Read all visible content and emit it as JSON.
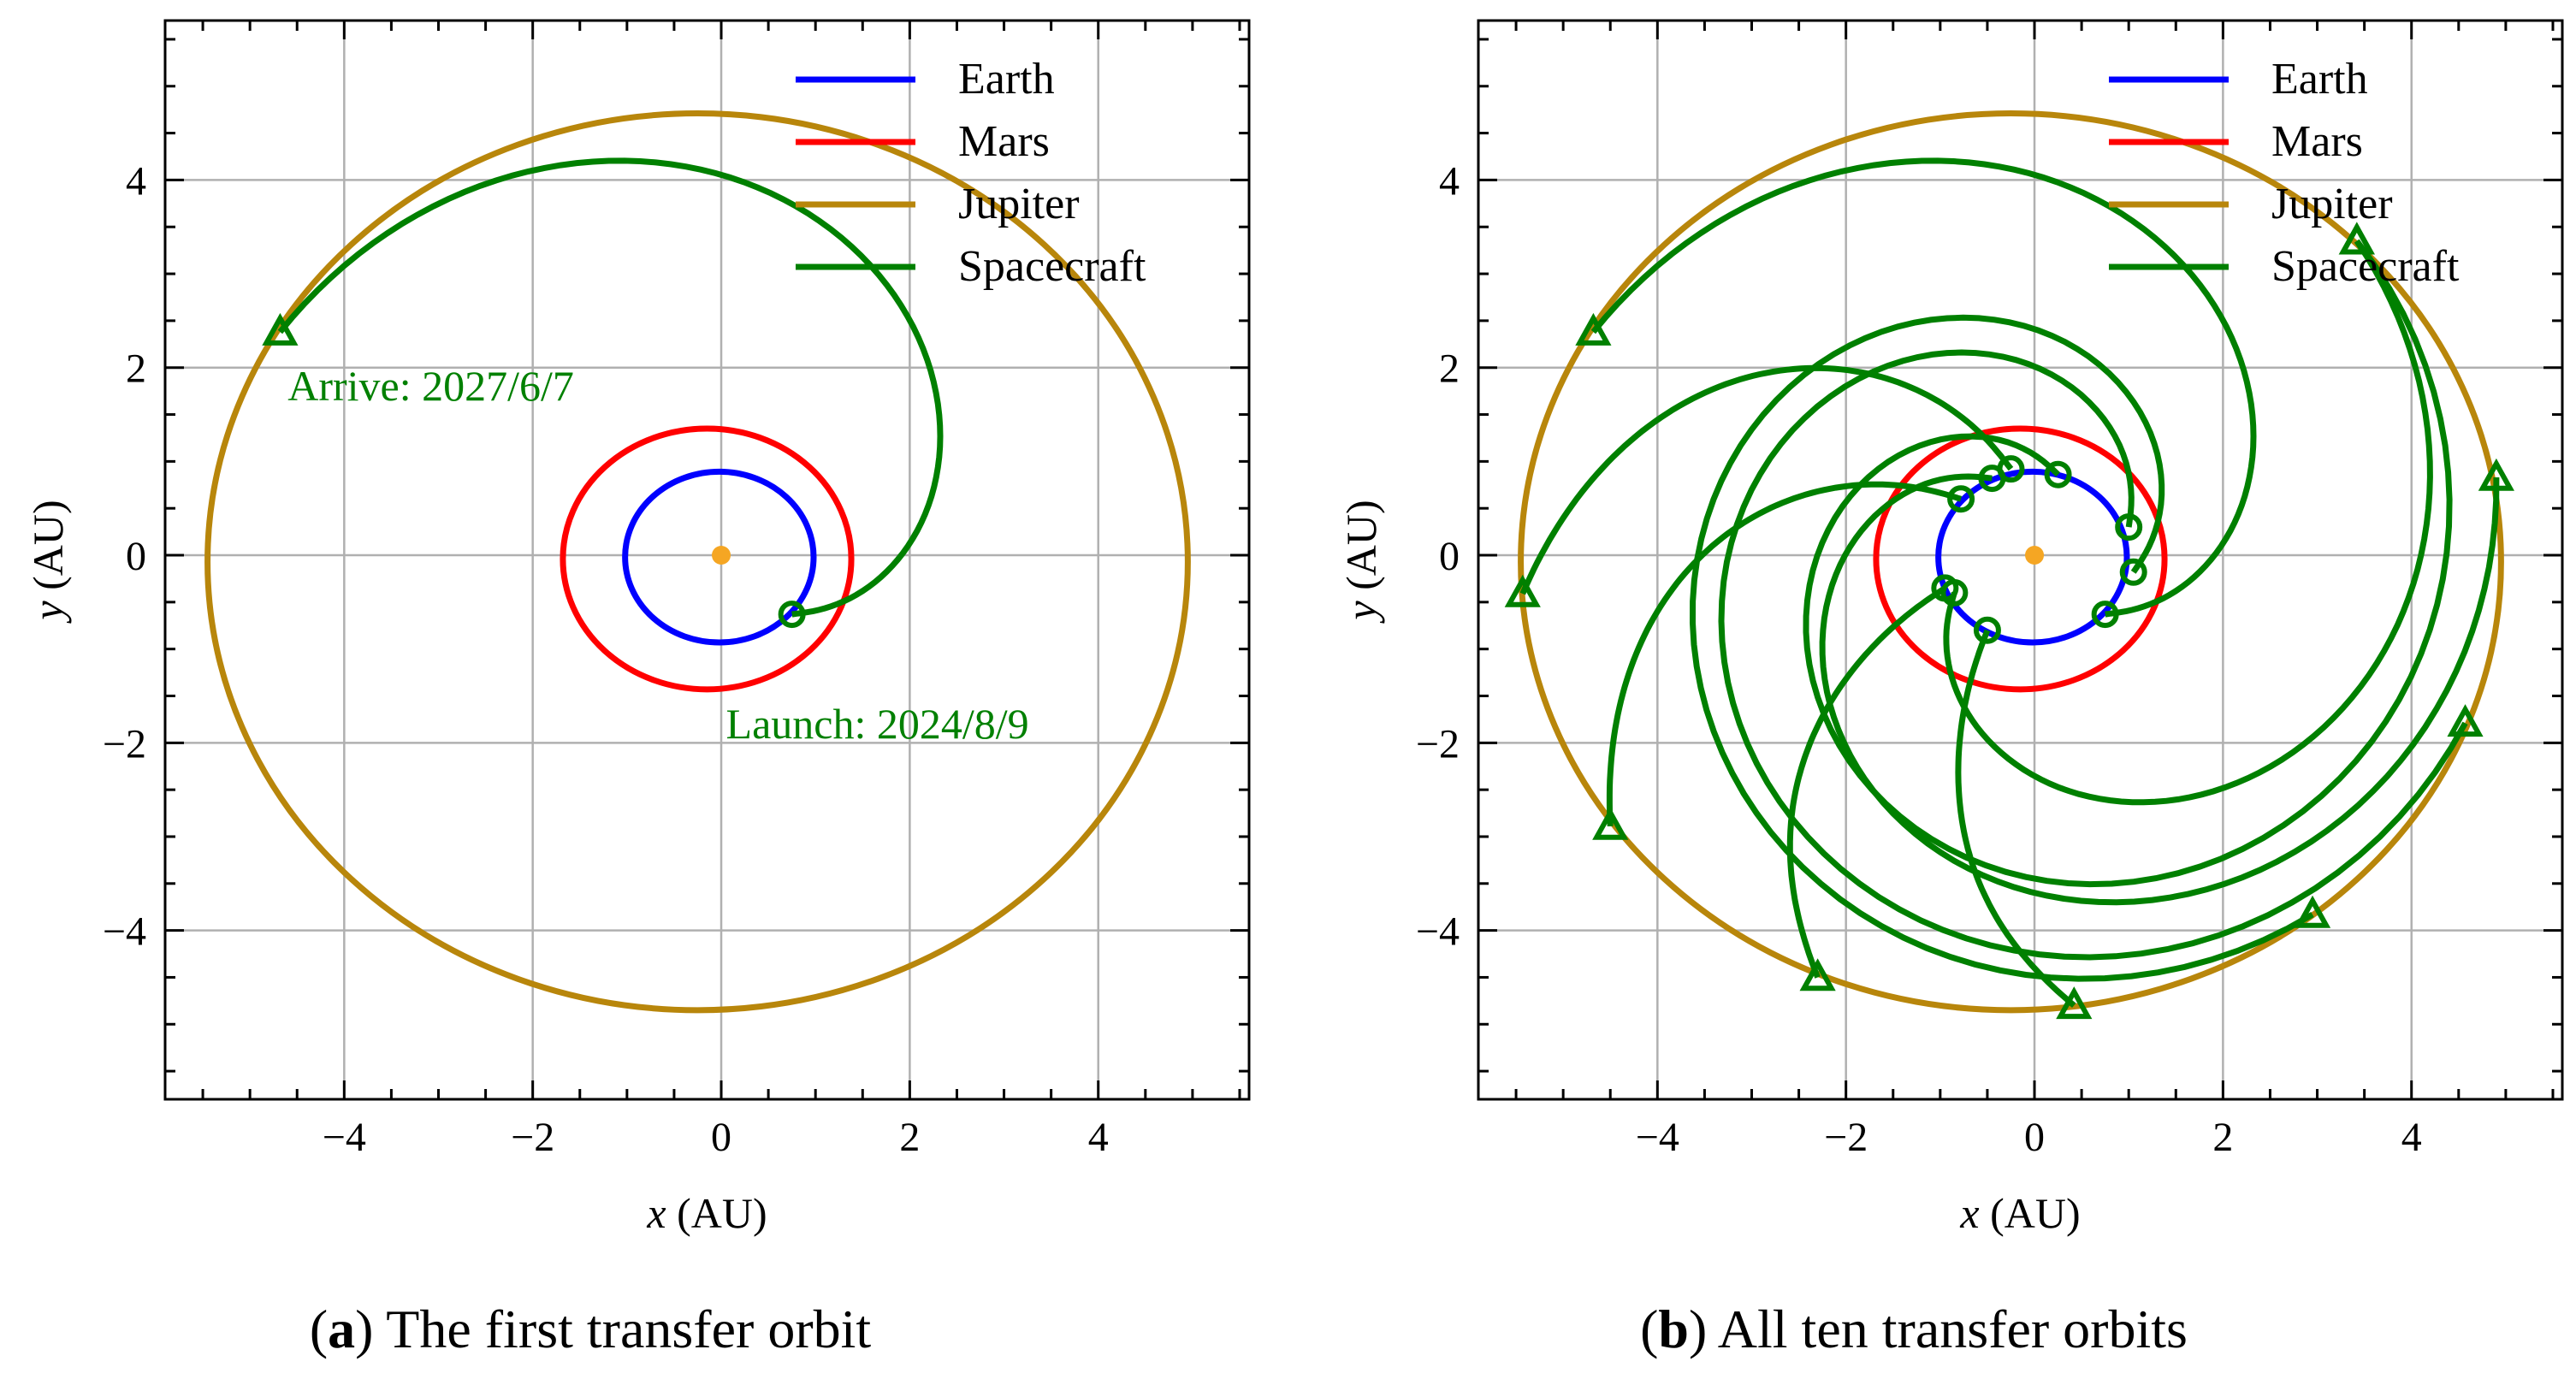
{
  "figure": {
    "captions": [
      {
        "letter": "a",
        "text": "The first transfer orbit"
      },
      {
        "letter": "b",
        "text": "All ten transfer orbits"
      }
    ]
  },
  "chart_data": [
    {
      "type": "line",
      "panel": "a",
      "title": "",
      "xlabel": "x (AU)",
      "ylabel": "y (AU)",
      "xlabel_var": "x",
      "ylabel_var": "y",
      "label_unit": " (AU)",
      "xlim": [
        -5.9,
        5.6
      ],
      "ylim": [
        -5.8,
        5.7
      ],
      "xticks": [
        -4,
        -2,
        0,
        2,
        4
      ],
      "yticks": [
        -4,
        -2,
        0,
        2,
        4
      ],
      "xtick_labels": [
        "−4",
        "−2",
        "0",
        "2",
        "4"
      ],
      "ytick_labels": [
        "−4",
        "−2",
        "0",
        "2",
        "4"
      ],
      "grid": true,
      "legend": {
        "position": "top-right",
        "entries": [
          {
            "label": "Earth",
            "color": "#0000ff"
          },
          {
            "label": "Mars",
            "color": "#ff0000"
          },
          {
            "label": "Jupiter",
            "color": "#b8860b"
          },
          {
            "label": "Spacecraft",
            "color": "#008000"
          }
        ]
      },
      "sun": {
        "x": 0,
        "y": 0,
        "color": "#f5a623"
      },
      "orbits": [
        {
          "name": "Earth",
          "center": [
            -0.02,
            -0.02
          ],
          "rx": 1.0,
          "ry": 0.91,
          "color": "#0000ff"
        },
        {
          "name": "Mars",
          "center": [
            -0.15,
            -0.04
          ],
          "rx": 1.53,
          "ry": 1.39,
          "color": "#ff0000"
        },
        {
          "name": "Jupiter",
          "center": [
            -0.25,
            -0.07
          ],
          "rx": 5.2,
          "ry": 4.78,
          "color": "#b8860b"
        }
      ],
      "transfers": [
        {
          "launch": [
            0.75,
            -0.63
          ],
          "arrive": [
            -4.68,
            2.38
          ]
        }
      ],
      "annotations": [
        {
          "text": "Arrive: 2027/6/7",
          "x": -4.6,
          "y": 1.65
        },
        {
          "text": "Launch: 2024/8/9",
          "x": 0.05,
          "y": -1.95
        }
      ]
    },
    {
      "type": "line",
      "panel": "b",
      "title": "",
      "xlabel": "x (AU)",
      "ylabel": "y (AU)",
      "xlabel_var": "x",
      "ylabel_var": "y",
      "label_unit": " (AU)",
      "xlim": [
        -5.9,
        5.6
      ],
      "ylim": [
        -5.8,
        5.7
      ],
      "xticks": [
        -4,
        -2,
        0,
        2,
        4
      ],
      "yticks": [
        -4,
        -2,
        0,
        2,
        4
      ],
      "xtick_labels": [
        "−4",
        "−2",
        "0",
        "2",
        "4"
      ],
      "ytick_labels": [
        "−4",
        "−2",
        "0",
        "2",
        "4"
      ],
      "grid": true,
      "legend": {
        "position": "top-right",
        "entries": [
          {
            "label": "Earth",
            "color": "#0000ff"
          },
          {
            "label": "Mars",
            "color": "#ff0000"
          },
          {
            "label": "Jupiter",
            "color": "#b8860b"
          },
          {
            "label": "Spacecraft",
            "color": "#008000"
          }
        ]
      },
      "sun": {
        "x": 0,
        "y": 0,
        "color": "#f5a623"
      },
      "orbits": [
        {
          "name": "Earth",
          "center": [
            -0.02,
            -0.02
          ],
          "rx": 1.0,
          "ry": 0.91,
          "color": "#0000ff"
        },
        {
          "name": "Mars",
          "center": [
            -0.15,
            -0.04
          ],
          "rx": 1.53,
          "ry": 1.39,
          "color": "#ff0000"
        },
        {
          "name": "Jupiter",
          "center": [
            -0.25,
            -0.07
          ],
          "rx": 5.2,
          "ry": 4.78,
          "color": "#b8860b"
        }
      ],
      "transfers": [
        {
          "launch": [
            0.75,
            -0.63
          ],
          "arrive": [
            -4.68,
            2.38
          ]
        },
        {
          "launch": [
            0.25,
            0.86
          ],
          "arrive": [
            3.42,
            3.35
          ]
        },
        {
          "launch": [
            -0.25,
            0.92
          ],
          "arrive": [
            -5.43,
            -0.41
          ]
        },
        {
          "launch": [
            -0.78,
            0.6
          ],
          "arrive": [
            -4.5,
            -2.89
          ]
        },
        {
          "launch": [
            -0.95,
            -0.35
          ],
          "arrive": [
            -2.3,
            -4.5
          ]
        },
        {
          "launch": [
            -0.5,
            -0.8
          ],
          "arrive": [
            0.42,
            -4.8
          ]
        },
        {
          "launch": [
            1.05,
            -0.18
          ],
          "arrive": [
            2.95,
            -3.83
          ]
        },
        {
          "launch": [
            1.0,
            0.3
          ],
          "arrive": [
            4.57,
            -1.79
          ]
        },
        {
          "launch": [
            -0.45,
            0.82
          ],
          "arrive": [
            4.9,
            0.83
          ]
        },
        {
          "launch": [
            -0.85,
            -0.4
          ],
          "arrive": [
            3.42,
            3.35
          ]
        }
      ],
      "annotations": []
    }
  ]
}
